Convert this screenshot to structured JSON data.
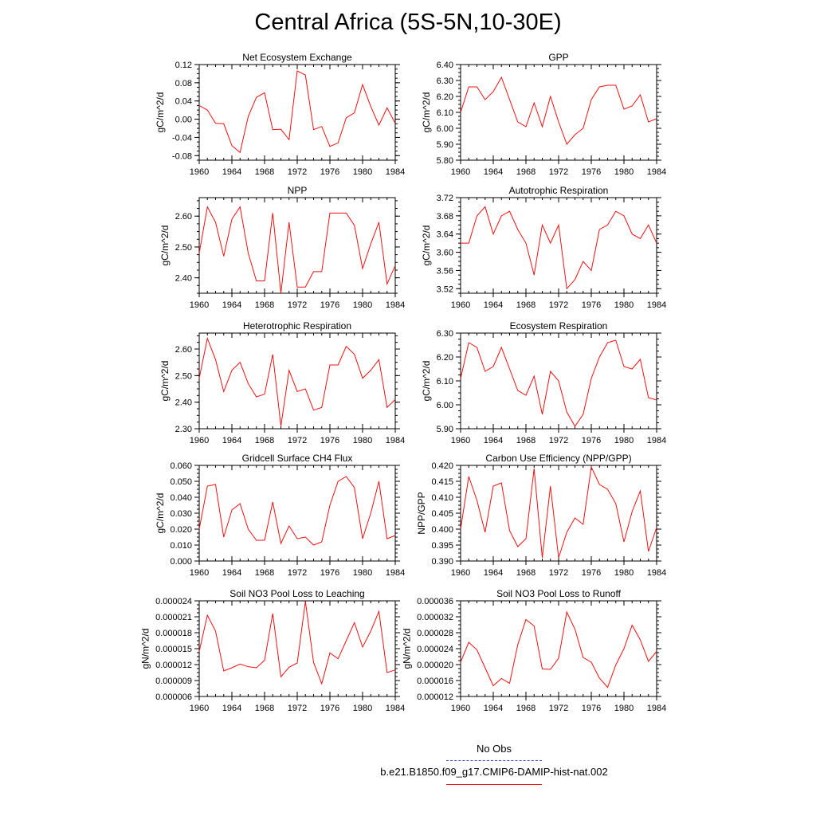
{
  "title": "Central Africa (5S-5N,10-30E)",
  "legend": {
    "entries": [
      {
        "label": "No Obs",
        "color": "#3b4bd8",
        "dash": "dashed"
      },
      {
        "label": "b.e21.B1850.f09_g17.CMIP6-DAMIP-hist-nat.002",
        "color": "#ee1111",
        "dash": "solid"
      }
    ]
  },
  "chart_data": [
    {
      "type": "line",
      "title": "Net Ecosystem Exchange",
      "ylabel": "gC/m^2/d",
      "xlim": [
        1960,
        1984
      ],
      "ylim": [
        -0.09,
        0.12
      ],
      "xticks": [
        "1960",
        "1964",
        "1968",
        "1972",
        "1976",
        "1980",
        "1984"
      ],
      "yticks": [
        "-0.08",
        "-0.04",
        "0.00",
        "0.04",
        "0.08",
        "0.12"
      ],
      "series": [
        {
          "color": "#ee1111",
          "x": [
            1960,
            1961,
            1962,
            1963,
            1964,
            1965,
            1966,
            1967,
            1968,
            1969,
            1970,
            1971,
            1972,
            1973,
            1974,
            1975,
            1976,
            1977,
            1978,
            1979,
            1980,
            1981,
            1982,
            1983,
            1984
          ],
          "y": [
            0.03,
            0.02,
            -0.009,
            -0.01,
            -0.058,
            -0.073,
            0.006,
            0.048,
            0.058,
            -0.023,
            -0.022,
            -0.045,
            0.106,
            0.097,
            -0.023,
            -0.016,
            -0.06,
            -0.052,
            0.003,
            0.014,
            0.076,
            0.028,
            -0.013,
            0.025,
            -0.009
          ]
        }
      ]
    },
    {
      "type": "line",
      "title": "GPP",
      "ylabel": "gC/m^2/d",
      "xlim": [
        1960,
        1984
      ],
      "ylim": [
        5.8,
        6.4
      ],
      "xticks": [
        "1960",
        "1964",
        "1968",
        "1972",
        "1976",
        "1980",
        "1984"
      ],
      "yticks": [
        "5.80",
        "5.90",
        "6.00",
        "6.10",
        "6.20",
        "6.30",
        "6.40"
      ],
      "series": [
        {
          "color": "#ee1111",
          "x": [
            1960,
            1961,
            1962,
            1963,
            1964,
            1965,
            1966,
            1967,
            1968,
            1969,
            1970,
            1971,
            1972,
            1973,
            1974,
            1975,
            1976,
            1977,
            1978,
            1979,
            1980,
            1981,
            1982,
            1983,
            1984
          ],
          "y": [
            6.1,
            6.26,
            6.26,
            6.18,
            6.23,
            6.32,
            6.18,
            6.04,
            6.01,
            6.16,
            6.01,
            6.2,
            6.04,
            5.9,
            5.96,
            6.0,
            6.18,
            6.26,
            6.27,
            6.27,
            6.12,
            6.14,
            6.21,
            6.04,
            6.06
          ]
        }
      ]
    },
    {
      "type": "line",
      "title": "NPP",
      "ylabel": "gC/m^2/d",
      "xlim": [
        1960,
        1984
      ],
      "ylim": [
        2.35,
        2.66
      ],
      "xticks": [
        "1960",
        "1964",
        "1968",
        "1972",
        "1976",
        "1980",
        "1984"
      ],
      "yticks": [
        "2.40",
        "2.50",
        "2.60"
      ],
      "series": [
        {
          "color": "#ee1111",
          "x": [
            1960,
            1961,
            1962,
            1963,
            1964,
            1965,
            1966,
            1967,
            1968,
            1969,
            1970,
            1971,
            1972,
            1973,
            1974,
            1975,
            1976,
            1977,
            1978,
            1979,
            1980,
            1981,
            1982,
            1983,
            1984
          ],
          "y": [
            2.48,
            2.63,
            2.58,
            2.47,
            2.59,
            2.63,
            2.48,
            2.39,
            2.39,
            2.61,
            2.35,
            2.58,
            2.37,
            2.37,
            2.42,
            2.42,
            2.61,
            2.61,
            2.61,
            2.57,
            2.43,
            2.51,
            2.58,
            2.38,
            2.44
          ]
        }
      ]
    },
    {
      "type": "line",
      "title": "Autotrophic Respiration",
      "ylabel": "gC/m^2/d",
      "xlim": [
        1960,
        1984
      ],
      "ylim": [
        3.51,
        3.72
      ],
      "xticks": [
        "1960",
        "1964",
        "1968",
        "1972",
        "1976",
        "1980",
        "1984"
      ],
      "yticks": [
        "3.52",
        "3.56",
        "3.60",
        "3.64",
        "3.68",
        "3.72"
      ],
      "series": [
        {
          "color": "#ee1111",
          "x": [
            1960,
            1961,
            1962,
            1963,
            1964,
            1965,
            1966,
            1967,
            1968,
            1969,
            1970,
            1971,
            1972,
            1973,
            1974,
            1975,
            1976,
            1977,
            1978,
            1979,
            1980,
            1981,
            1982,
            1983,
            1984
          ],
          "y": [
            3.62,
            3.62,
            3.68,
            3.7,
            3.64,
            3.68,
            3.69,
            3.65,
            3.62,
            3.55,
            3.66,
            3.62,
            3.66,
            3.52,
            3.54,
            3.58,
            3.56,
            3.65,
            3.66,
            3.69,
            3.68,
            3.64,
            3.63,
            3.66,
            3.62
          ]
        }
      ]
    },
    {
      "type": "line",
      "title": "Heterotrophic Respiration",
      "ylabel": "gC/m^2/d",
      "xlim": [
        1960,
        1984
      ],
      "ylim": [
        2.3,
        2.66
      ],
      "xticks": [
        "1960",
        "1964",
        "1968",
        "1972",
        "1976",
        "1980",
        "1984"
      ],
      "yticks": [
        "2.30",
        "2.40",
        "2.50",
        "2.60"
      ],
      "series": [
        {
          "color": "#ee1111",
          "x": [
            1960,
            1961,
            1962,
            1963,
            1964,
            1965,
            1966,
            1967,
            1968,
            1969,
            1970,
            1971,
            1972,
            1973,
            1974,
            1975,
            1976,
            1977,
            1978,
            1979,
            1980,
            1981,
            1982,
            1983,
            1984
          ],
          "y": [
            2.49,
            2.64,
            2.56,
            2.44,
            2.52,
            2.55,
            2.47,
            2.42,
            2.43,
            2.58,
            2.31,
            2.52,
            2.44,
            2.45,
            2.37,
            2.38,
            2.54,
            2.54,
            2.61,
            2.58,
            2.49,
            2.52,
            2.56,
            2.38,
            2.41
          ]
        }
      ]
    },
    {
      "type": "line",
      "title": "Ecosystem Respiration",
      "ylabel": "gC/m^2/d",
      "xlim": [
        1960,
        1984
      ],
      "ylim": [
        5.9,
        6.3
      ],
      "xticks": [
        "1960",
        "1964",
        "1968",
        "1972",
        "1976",
        "1980",
        "1984"
      ],
      "yticks": [
        "5.90",
        "6.00",
        "6.10",
        "6.20",
        "6.30"
      ],
      "series": [
        {
          "color": "#ee1111",
          "x": [
            1960,
            1961,
            1962,
            1963,
            1964,
            1965,
            1966,
            1967,
            1968,
            1969,
            1970,
            1971,
            1972,
            1973,
            1974,
            1975,
            1976,
            1977,
            1978,
            1979,
            1980,
            1981,
            1982,
            1983,
            1984
          ],
          "y": [
            6.11,
            6.26,
            6.24,
            6.14,
            6.16,
            6.24,
            6.15,
            6.06,
            6.04,
            6.12,
            5.96,
            6.14,
            6.1,
            5.97,
            5.91,
            5.96,
            6.11,
            6.2,
            6.26,
            6.27,
            6.16,
            6.15,
            6.19,
            6.03,
            6.02
          ]
        }
      ]
    },
    {
      "type": "line",
      "title": "Gridcell Surface CH4 Flux",
      "ylabel": "gC/m^2/d",
      "xlim": [
        1960,
        1984
      ],
      "ylim": [
        0.0,
        0.06
      ],
      "xticks": [
        "1960",
        "1964",
        "1968",
        "1972",
        "1976",
        "1980",
        "1984"
      ],
      "yticks": [
        "0.000",
        "0.010",
        "0.020",
        "0.030",
        "0.040",
        "0.050",
        "0.060"
      ],
      "series": [
        {
          "color": "#ee1111",
          "x": [
            1960,
            1961,
            1962,
            1963,
            1964,
            1965,
            1966,
            1967,
            1968,
            1969,
            1970,
            1971,
            1972,
            1973,
            1974,
            1975,
            1976,
            1977,
            1978,
            1979,
            1980,
            1981,
            1982,
            1983,
            1984
          ],
          "y": [
            0.02,
            0.047,
            0.048,
            0.015,
            0.032,
            0.036,
            0.02,
            0.013,
            0.013,
            0.037,
            0.011,
            0.022,
            0.014,
            0.015,
            0.01,
            0.012,
            0.035,
            0.05,
            0.053,
            0.046,
            0.014,
            0.03,
            0.05,
            0.014,
            0.016
          ]
        }
      ]
    },
    {
      "type": "line",
      "title": "Carbon Use Efficiency (NPP/GPP)",
      "ylabel": "NPP/GPP",
      "xlim": [
        1960,
        1984
      ],
      "ylim": [
        0.39,
        0.42
      ],
      "xticks": [
        "1960",
        "1964",
        "1968",
        "1972",
        "1976",
        "1980",
        "1984"
      ],
      "yticks": [
        "0.390",
        "0.395",
        "0.400",
        "0.405",
        "0.410",
        "0.415",
        "0.420"
      ],
      "series": [
        {
          "color": "#ee1111",
          "x": [
            1960,
            1961,
            1962,
            1963,
            1964,
            1965,
            1966,
            1967,
            1968,
            1969,
            1970,
            1971,
            1972,
            1973,
            1974,
            1975,
            1976,
            1977,
            1978,
            1979,
            1980,
            1981,
            1982,
            1983,
            1984
          ],
          "y": [
            0.4,
            0.4165,
            0.409,
            0.399,
            0.4135,
            0.4145,
            0.3995,
            0.3945,
            0.397,
            0.419,
            0.391,
            0.4135,
            0.391,
            0.399,
            0.4035,
            0.4015,
            0.4195,
            0.414,
            0.4125,
            0.408,
            0.396,
            0.4055,
            0.412,
            0.393,
            0.4005
          ]
        }
      ]
    },
    {
      "type": "line",
      "title": "Soil NO3 Pool Loss to Leaching",
      "ylabel": "gN/m^2/d",
      "xlim": [
        1960,
        1984
      ],
      "ylim": [
        6e-06,
        2.4e-05
      ],
      "xticks": [
        "1960",
        "1964",
        "1968",
        "1972",
        "1976",
        "1980",
        "1984"
      ],
      "yticks": [
        "0.000006",
        "0.000009",
        "0.000012",
        "0.000015",
        "0.000018",
        "0.000021",
        "0.000024"
      ],
      "series": [
        {
          "color": "#ee1111",
          "x": [
            1960,
            1961,
            1962,
            1963,
            1964,
            1965,
            1966,
            1967,
            1968,
            1969,
            1970,
            1971,
            1972,
            1973,
            1974,
            1975,
            1976,
            1977,
            1978,
            1979,
            1980,
            1981,
            1982,
            1983,
            1984
          ],
          "y": [
            1.45e-05,
            2.13e-05,
            1.83e-05,
            1.08e-05,
            1.14e-05,
            1.21e-05,
            1.16e-05,
            1.14e-05,
            1.28e-05,
            2.16e-05,
            9.7e-06,
            1.15e-05,
            1.23e-05,
            2.39e-05,
            1.24e-05,
            8.4e-06,
            1.42e-05,
            1.31e-05,
            1.65e-05,
            1.99e-05,
            1.53e-05,
            1.83e-05,
            2.2e-05,
            1.05e-05,
            1.1e-05
          ]
        }
      ]
    },
    {
      "type": "line",
      "title": "Soil NO3 Pool Loss to Runoff",
      "ylabel": "gN/m^2/d",
      "xlim": [
        1960,
        1984
      ],
      "ylim": [
        1.2e-05,
        3.6e-05
      ],
      "xticks": [
        "1960",
        "1964",
        "1968",
        "1972",
        "1976",
        "1980",
        "1984"
      ],
      "yticks": [
        "0.000012",
        "0.000016",
        "0.000020",
        "0.000024",
        "0.000028",
        "0.000032",
        "0.000036"
      ],
      "series": [
        {
          "color": "#ee1111",
          "x": [
            1960,
            1961,
            1962,
            1963,
            1964,
            1965,
            1966,
            1967,
            1968,
            1969,
            1970,
            1971,
            1972,
            1973,
            1974,
            1975,
            1976,
            1977,
            1978,
            1979,
            1980,
            1981,
            1982,
            1983,
            1984
          ],
          "y": [
            2.06e-05,
            2.56e-05,
            2.37e-05,
            1.92e-05,
            1.47e-05,
            1.65e-05,
            1.53e-05,
            2.5e-05,
            3.13e-05,
            2.97e-05,
            1.89e-05,
            1.88e-05,
            2.16e-05,
            3.32e-05,
            2.89e-05,
            2.18e-05,
            2.06e-05,
            1.66e-05,
            1.43e-05,
            1.99e-05,
            2.4e-05,
            2.99e-05,
            2.62e-05,
            2.08e-05,
            2.33e-05
          ]
        }
      ]
    }
  ]
}
